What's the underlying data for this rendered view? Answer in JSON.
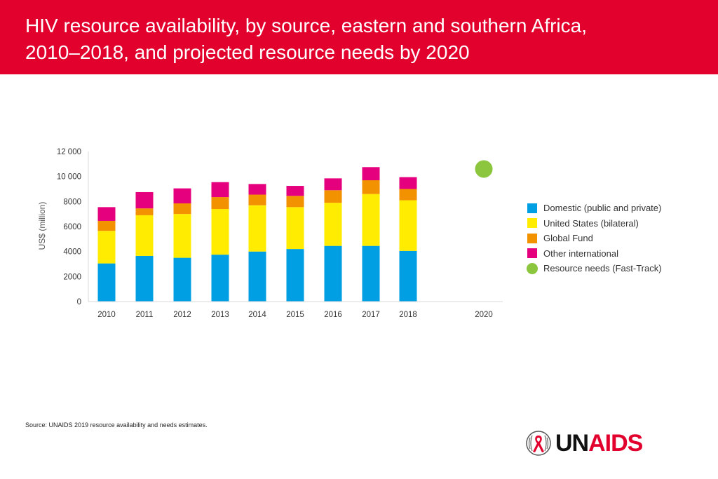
{
  "header": {
    "title_line1": "HIV resource availability, by source, eastern and southern Africa,",
    "title_line2": "2010–2018, and projected resource needs by 2020",
    "color": "#e2012d"
  },
  "chart_data": {
    "type": "bar",
    "stacked": true,
    "categories": [
      "2010",
      "2011",
      "2012",
      "2013",
      "2014",
      "2015",
      "2016",
      "2017",
      "2018"
    ],
    "x_ticks": [
      "2010",
      "2011",
      "2012",
      "2013",
      "2014",
      "2015",
      "2016",
      "2017",
      "2018",
      "2020"
    ],
    "series": [
      {
        "name": "Domestic (public and private)",
        "color": "#009fe3",
        "values": [
          3050,
          3650,
          3500,
          3750,
          4000,
          4200,
          4450,
          4450,
          4050
        ]
      },
      {
        "name": "United States (bilateral)",
        "color": "#ffec00",
        "values": [
          2600,
          3250,
          3500,
          3650,
          3700,
          3350,
          3450,
          4150,
          4050
        ]
      },
      {
        "name": "Global Fund",
        "color": "#f39200",
        "values": [
          800,
          550,
          850,
          950,
          850,
          900,
          1000,
          1100,
          900
        ]
      },
      {
        "name": "Other international",
        "color": "#e5007e",
        "values": [
          1100,
          1300,
          1200,
          1200,
          850,
          800,
          950,
          1050,
          950
        ]
      }
    ],
    "resource_needs": {
      "name": "Resource needs (Fast-Track)",
      "color": "#8cc63e",
      "x": "2020",
      "value": 10600
    },
    "ylabel": "US$ (million)",
    "xlabel": "",
    "ylim": [
      0,
      12000
    ],
    "y_ticks": [
      0,
      2000,
      4000,
      6000,
      8000,
      10000,
      12000
    ],
    "y_tick_labels": [
      "0",
      "2000",
      "4000",
      "6000",
      "8000",
      "10 000",
      "12 000"
    ],
    "legend_position": "right"
  },
  "legend": {
    "items": [
      {
        "label": "Domestic (public and private)",
        "color": "#009fe3",
        "shape": "square"
      },
      {
        "label": "United States (bilateral)",
        "color": "#ffec00",
        "shape": "square"
      },
      {
        "label": "Global Fund",
        "color": "#f39200",
        "shape": "square"
      },
      {
        "label": "Other international",
        "color": "#e5007e",
        "shape": "square"
      },
      {
        "label": "Resource needs (Fast-Track)",
        "color": "#8cc63e",
        "shape": "circle"
      }
    ]
  },
  "footer": {
    "source_label": "Source:",
    "source_text": "UNAIDS 2019 resource availability and needs estimates."
  },
  "logo": {
    "part1": "UN",
    "part2": "AIDS",
    "icon": "unaids-ribbon-emblem-icon"
  }
}
